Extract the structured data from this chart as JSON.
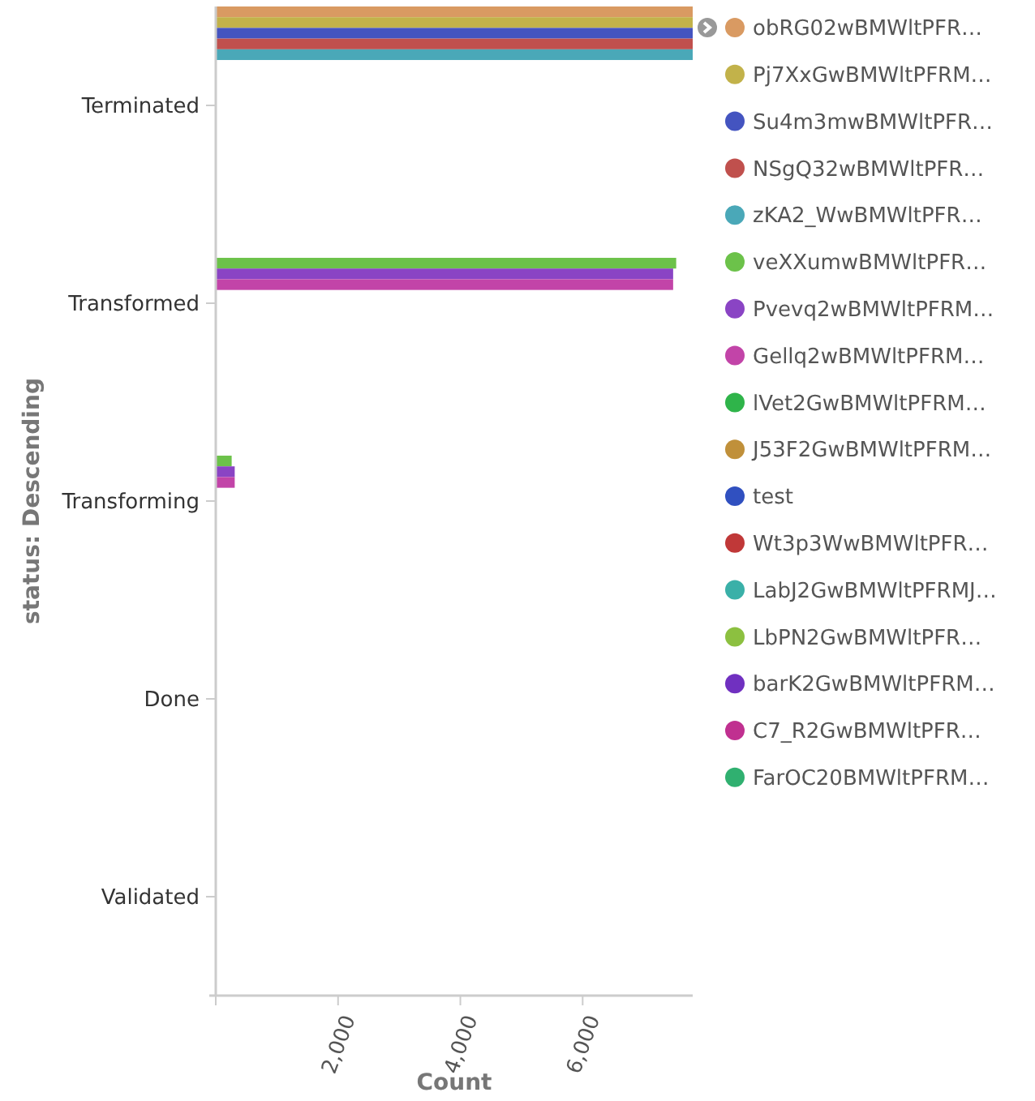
{
  "chart_data": {
    "type": "bar",
    "orientation": "horizontal",
    "xlabel": "Count",
    "ylabel": "status: Descending",
    "categories": [
      "Terminated",
      "Transformed",
      "Transforming",
      "Done",
      "Validated"
    ],
    "xlim": [
      0,
      7800
    ],
    "xticks": [
      {
        "value": 0,
        "label": null
      },
      {
        "value": 2000,
        "label": "2,000"
      },
      {
        "value": 4000,
        "label": "4,000"
      },
      {
        "value": 6000,
        "label": "6,000"
      }
    ],
    "legend": "right",
    "grid": false,
    "series": [
      {
        "name": "obRG02wBMWltPFR…",
        "color": "#d99a62",
        "values": [
          7800,
          null,
          null,
          null,
          null
        ]
      },
      {
        "name": "Pj7XxGwBMWltPFRM…",
        "color": "#c2b24a",
        "values": [
          7800,
          null,
          null,
          null,
          null
        ]
      },
      {
        "name": "Su4m3mwBMWltPFR…",
        "color": "#4454c0",
        "values": [
          7800,
          null,
          null,
          null,
          null
        ]
      },
      {
        "name": "NSgQ32wBMWltPFR…",
        "color": "#c0504d",
        "values": [
          7800,
          null,
          null,
          null,
          null
        ]
      },
      {
        "name": "zKA2_WwBMWltPFR…",
        "color": "#4aa8b8",
        "values": [
          7800,
          null,
          null,
          null,
          null
        ]
      },
      {
        "name": "veXXumwBMWltPFR…",
        "color": "#6cc24a",
        "values": [
          null,
          7530,
          260,
          null,
          null
        ]
      },
      {
        "name": "Pvevq2wBMWltPFRM…",
        "color": "#8a44c4",
        "values": [
          null,
          7480,
          310,
          null,
          null
        ]
      },
      {
        "name": "Gellq2wBMWltPFRM…",
        "color": "#c244a8",
        "values": [
          null,
          7480,
          310,
          null,
          null
        ]
      },
      {
        "name": "lVet2GwBMWltPFRM…",
        "color": "#2fb44a",
        "values": [
          null,
          null,
          null,
          null,
          null
        ]
      },
      {
        "name": "J53F2GwBMWltPFRM…",
        "color": "#c0903a",
        "values": [
          null,
          null,
          null,
          null,
          null
        ]
      },
      {
        "name": "test",
        "color": "#3050c0",
        "values": [
          null,
          null,
          null,
          null,
          null
        ]
      },
      {
        "name": "Wt3p3WwBMWltPFR…",
        "color": "#c03838",
        "values": [
          null,
          null,
          null,
          null,
          null
        ]
      },
      {
        "name": "LabJ2GwBMWltPFRMJ…",
        "color": "#3ab0a8",
        "values": [
          null,
          null,
          null,
          null,
          null
        ]
      },
      {
        "name": "LbPN2GwBMWltPFR…",
        "color": "#8cc040",
        "values": [
          null,
          null,
          null,
          null,
          null
        ]
      },
      {
        "name": "barK2GwBMWltPFRM…",
        "color": "#7030c0",
        "values": [
          null,
          null,
          null,
          null,
          null
        ]
      },
      {
        "name": "C7_R2GwBMWltPFR…",
        "color": "#c03090",
        "values": [
          null,
          null,
          null,
          null,
          null
        ]
      },
      {
        "name": "FarOC20BMWltPFRM…",
        "color": "#30b070",
        "values": [
          null,
          null,
          null,
          null,
          null
        ]
      }
    ]
  }
}
